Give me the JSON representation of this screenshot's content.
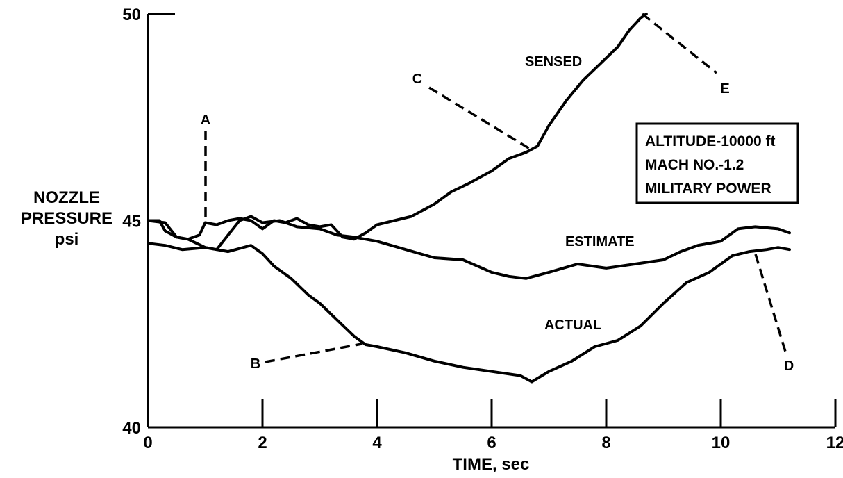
{
  "chart_data": {
    "type": "line",
    "title": "",
    "xlabel": "TIME, sec",
    "ylabel": [
      "NOZZLE",
      "PRESSURE",
      "psi"
    ],
    "xlim": [
      0,
      12
    ],
    "ylim": [
      40,
      50
    ],
    "xticks": [
      0,
      2,
      4,
      6,
      8,
      10,
      12
    ],
    "yticks": [
      40,
      45,
      50
    ],
    "grid": false,
    "legend": "none",
    "series": [
      {
        "name": "SENSED",
        "x": [
          0,
          0.2,
          0.3,
          0.5,
          0.7,
          0.9,
          1.0,
          1.2,
          1.4,
          1.6,
          1.8,
          2.0,
          2.2,
          2.4,
          2.6,
          2.8,
          3.0,
          3.2,
          3.4,
          3.6,
          3.8,
          4.0,
          4.3,
          4.6,
          5.0,
          5.3,
          5.6,
          6.0,
          6.3,
          6.6,
          6.8,
          7.0,
          7.3,
          7.6,
          7.9,
          8.2,
          8.4,
          8.6,
          8.7
        ],
        "y": [
          45.0,
          45.0,
          44.75,
          44.6,
          44.55,
          44.65,
          44.95,
          44.9,
          45.0,
          45.05,
          45.0,
          44.8,
          45.0,
          44.95,
          45.05,
          44.9,
          44.85,
          44.9,
          44.6,
          44.55,
          44.7,
          44.9,
          45.0,
          45.1,
          45.4,
          45.7,
          45.9,
          46.2,
          46.5,
          46.65,
          46.8,
          47.3,
          47.9,
          48.4,
          48.8,
          49.2,
          49.6,
          49.9,
          50.0
        ]
      },
      {
        "name": "ESTIMATE",
        "x": [
          0,
          0.3,
          0.5,
          0.7,
          1.0,
          1.2,
          1.4,
          1.6,
          1.8,
          2.0,
          2.3,
          2.6,
          3.0,
          3.3,
          3.6,
          4.0,
          4.5,
          5.0,
          5.5,
          6.0,
          6.3,
          6.6,
          7.0,
          7.5,
          8.0,
          8.5,
          9.0,
          9.3,
          9.6,
          10.0,
          10.3,
          10.6,
          11.0,
          11.2
        ],
        "y": [
          45.0,
          44.95,
          44.6,
          44.55,
          44.35,
          44.3,
          44.65,
          45.0,
          45.1,
          44.95,
          45.0,
          44.85,
          44.8,
          44.65,
          44.6,
          44.5,
          44.3,
          44.1,
          44.05,
          43.75,
          43.65,
          43.6,
          43.75,
          43.95,
          43.85,
          43.95,
          44.05,
          44.25,
          44.4,
          44.5,
          44.8,
          44.85,
          44.8,
          44.7
        ]
      },
      {
        "name": "ACTUAL",
        "x": [
          0,
          0.3,
          0.6,
          1.0,
          1.4,
          1.8,
          2.0,
          2.2,
          2.5,
          2.8,
          3.0,
          3.3,
          3.6,
          3.8,
          4.0,
          4.5,
          5.0,
          5.5,
          6.0,
          6.5,
          6.7,
          7.0,
          7.4,
          7.8,
          8.2,
          8.6,
          9.0,
          9.4,
          9.8,
          10.2,
          10.5,
          10.8,
          11.0,
          11.2
        ],
        "y": [
          44.45,
          44.4,
          44.3,
          44.35,
          44.25,
          44.4,
          44.2,
          43.9,
          43.6,
          43.2,
          43.0,
          42.6,
          42.2,
          42.0,
          41.95,
          41.8,
          41.6,
          41.45,
          41.35,
          41.25,
          41.1,
          41.35,
          41.6,
          41.95,
          42.1,
          42.45,
          43.0,
          43.5,
          43.75,
          44.15,
          44.25,
          44.3,
          44.35,
          44.3
        ]
      }
    ],
    "labels": {
      "sensed": "SENSED",
      "estimate": "ESTIMATE",
      "actual": "ACTUAL",
      "a": "A",
      "b": "B",
      "c": "C",
      "d": "D",
      "e": "E"
    },
    "condition_box": [
      "ALTITUDE-10000 ft",
      "MACH NO.-1.2",
      "MILITARY POWER"
    ]
  }
}
